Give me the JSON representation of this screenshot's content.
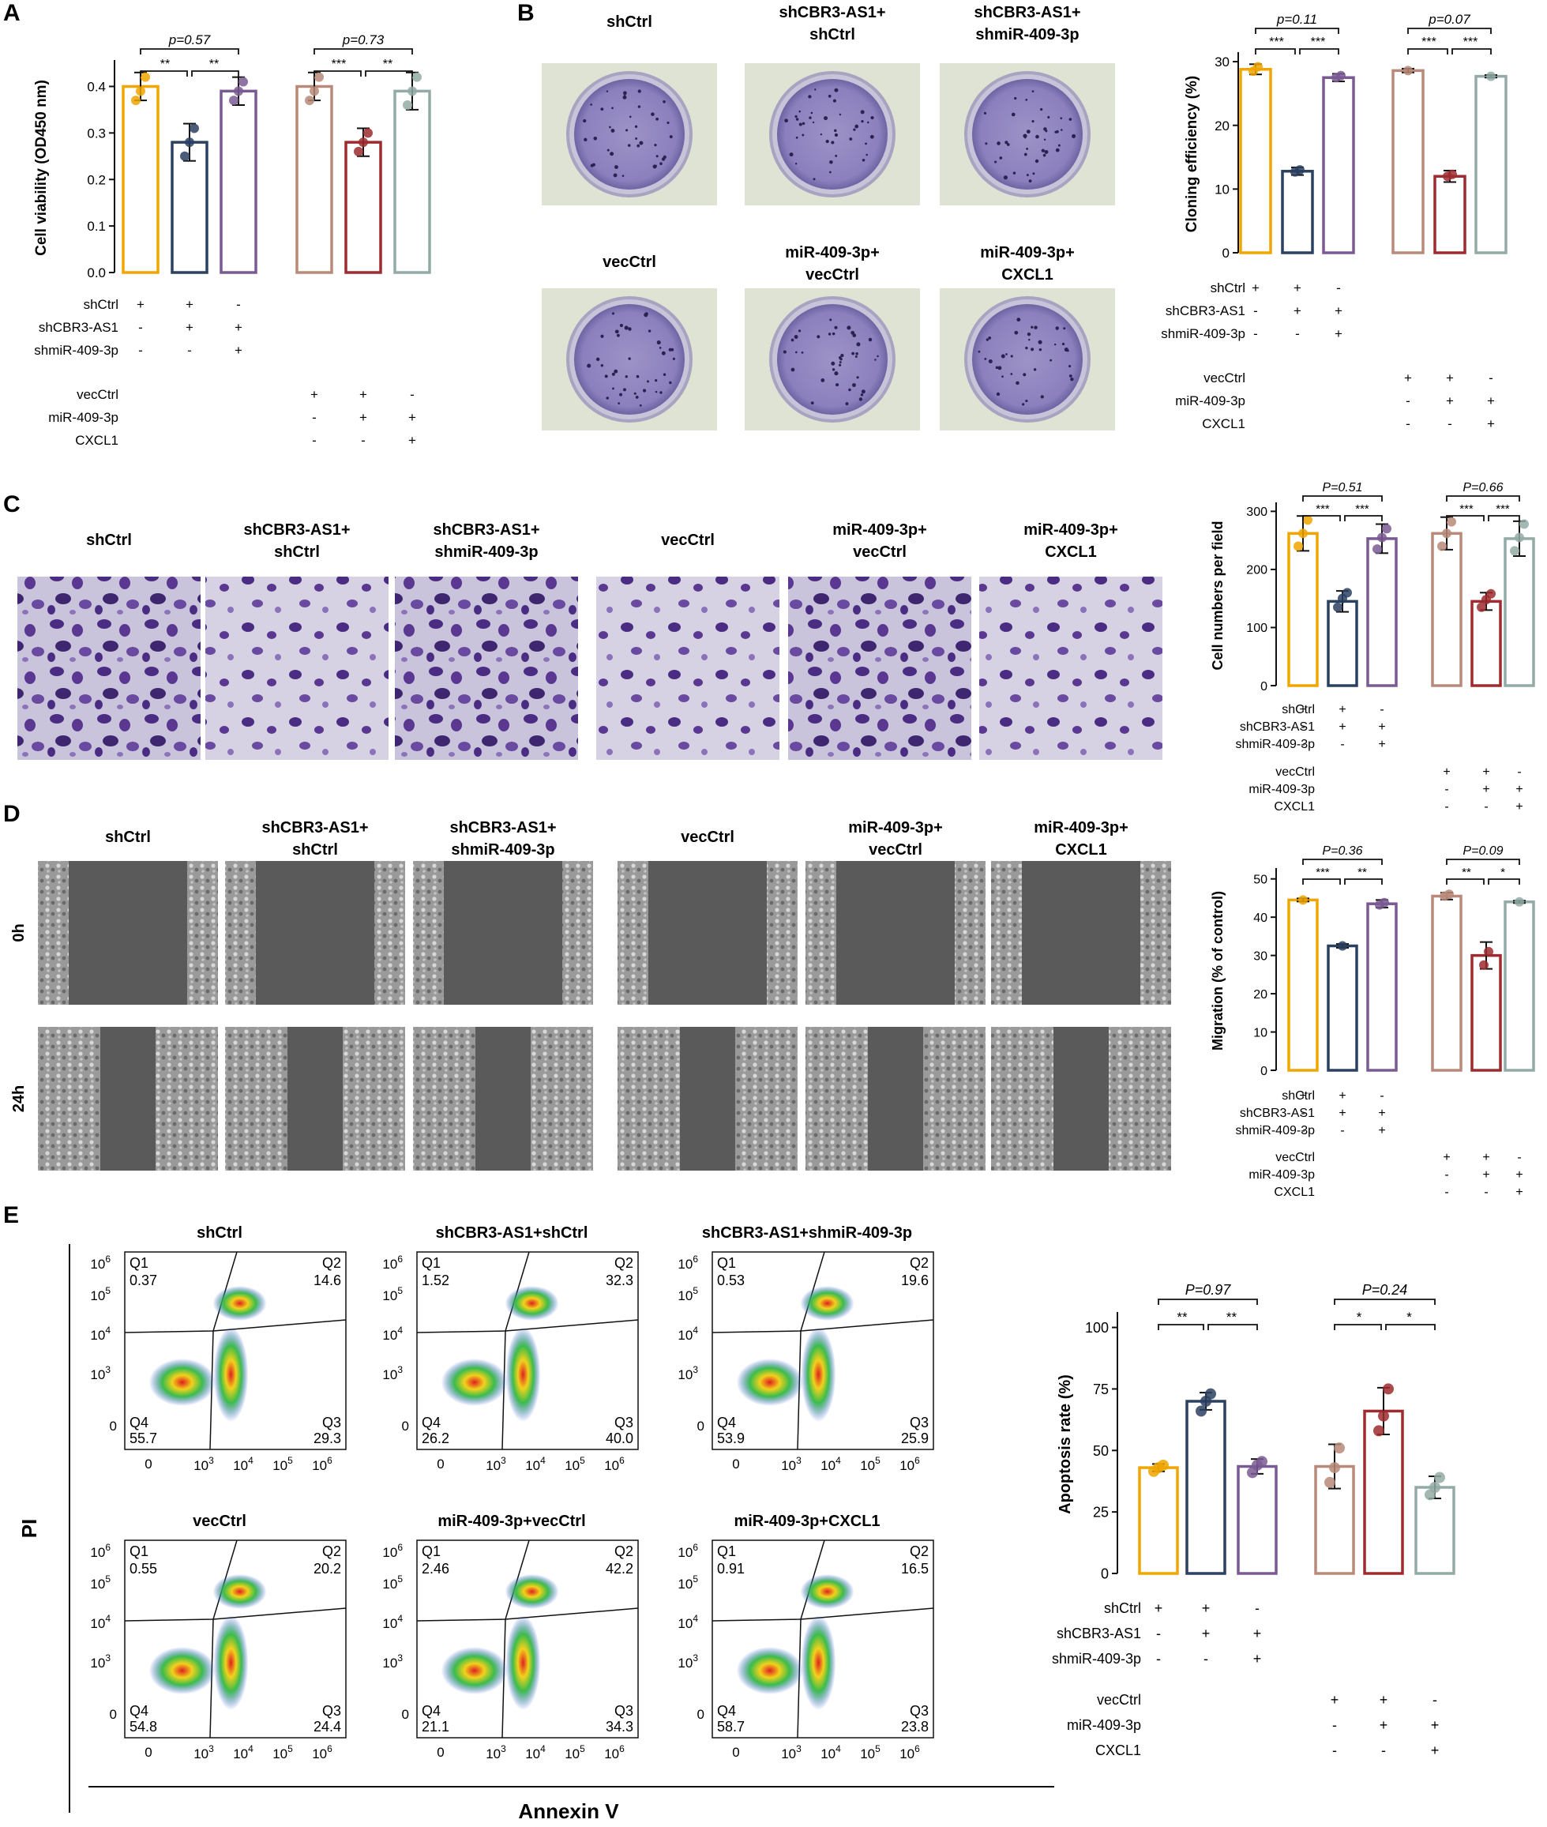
{
  "panels": {
    "A": {
      "letter": "A",
      "chart_data": {
        "type": "bar",
        "ylabel": "Cell viability (OD450 nm)",
        "ylim": [
          0,
          0.45
        ],
        "yticks": [
          "0.0",
          "0.1",
          "0.2",
          "0.3",
          "0.4"
        ],
        "ytick_values": [
          0,
          0.1,
          0.2,
          0.3,
          0.4
        ],
        "bars": [
          {
            "value": 0.4,
            "err": 0.03,
            "color": "#f0a500",
            "points": [
              0.37,
              0.39,
              0.42
            ]
          },
          {
            "value": 0.28,
            "err": 0.04,
            "color": "#2b4160",
            "points": [
              0.25,
              0.28,
              0.31
            ]
          },
          {
            "value": 0.39,
            "err": 0.03,
            "color": "#7a5a93",
            "points": [
              0.37,
              0.39,
              0.41
            ]
          },
          {
            "value": 0.4,
            "err": 0.03,
            "color": "#b98a79",
            "points": [
              0.37,
              0.39,
              0.42
            ]
          },
          {
            "value": 0.28,
            "err": 0.03,
            "color": "#9d2b2f",
            "points": [
              0.26,
              0.28,
              0.3
            ]
          },
          {
            "value": 0.39,
            "err": 0.04,
            "color": "#93aba6",
            "points": [
              0.36,
              0.39,
              0.42
            ]
          }
        ],
        "pvalues": [
          "p=0.57",
          "p=0.73"
        ],
        "sig": [
          "**",
          "**",
          "***",
          "**"
        ],
        "rows1": [
          {
            "label": "shCtrl",
            "signs": [
              "+",
              "+",
              "-"
            ]
          },
          {
            "label": "shCBR3-AS1",
            "signs": [
              "-",
              "+",
              "+"
            ]
          },
          {
            "label": "shmiR-409-3p",
            "signs": [
              "-",
              "-",
              "+"
            ]
          }
        ],
        "rows2": [
          {
            "label": "vecCtrl",
            "signs": [
              "+",
              "+",
              "-"
            ]
          },
          {
            "label": "miR-409-3p",
            "signs": [
              "-",
              "+",
              "+"
            ]
          },
          {
            "label": "CXCL1",
            "signs": [
              "-",
              "-",
              "+"
            ]
          }
        ]
      }
    },
    "B": {
      "letter": "B",
      "images": [
        {
          "title": [
            "shCtrl"
          ]
        },
        {
          "title": [
            "shCBR3-AS1+",
            "shCtrl"
          ]
        },
        {
          "title": [
            "shCBR3-AS1+",
            "shmiR-409-3p"
          ]
        },
        {
          "title": [
            "vecCtrl"
          ]
        },
        {
          "title": [
            "miR-409-3p+",
            "vecCtrl"
          ]
        },
        {
          "title": [
            "miR-409-3p+",
            "CXCL1"
          ]
        }
      ],
      "chart_data": {
        "type": "bar",
        "ylabel": "Cloning efficiency (%)",
        "ylim": [
          0,
          31
        ],
        "yticks": [
          "0",
          "10",
          "20",
          "30"
        ],
        "ytick_values": [
          0,
          10,
          20,
          30
        ],
        "bars": [
          {
            "value": 28.8,
            "err": 0.8,
            "color": "#f0a500",
            "points": [
              28.5,
              29.2
            ]
          },
          {
            "value": 12.8,
            "err": 0.6,
            "color": "#2b4160",
            "points": [
              12.7,
              13.0
            ]
          },
          {
            "value": 27.5,
            "err": 0.6,
            "color": "#7a5a93",
            "points": [
              27.5,
              27.8
            ]
          },
          {
            "value": 28.6,
            "err": 0.3,
            "color": "#b98a79",
            "points": [
              28.6
            ]
          },
          {
            "value": 12.0,
            "err": 0.9,
            "color": "#9d2b2f",
            "points": [
              12.0,
              12.3
            ]
          },
          {
            "value": 27.7,
            "err": 0.2,
            "color": "#93aba6",
            "points": [
              27.7
            ]
          }
        ],
        "pvalues": [
          "p=0.11",
          "p=0.07"
        ],
        "sig": [
          "***",
          "***",
          "***",
          "***"
        ],
        "rows1": [
          {
            "label": "shCtrl",
            "signs": [
              "+",
              "+",
              "-"
            ]
          },
          {
            "label": "shCBR3-AS1",
            "signs": [
              "-",
              "+",
              "+"
            ]
          },
          {
            "label": "shmiR-409-3p",
            "signs": [
              "-",
              "-",
              "+"
            ]
          }
        ],
        "rows2": [
          {
            "label": "vecCtrl",
            "signs": [
              "+",
              "+",
              "-"
            ]
          },
          {
            "label": "miR-409-3p",
            "signs": [
              "-",
              "+",
              "+"
            ]
          },
          {
            "label": "CXCL1",
            "signs": [
              "-",
              "-",
              "+"
            ]
          }
        ]
      }
    },
    "C": {
      "letter": "C",
      "images": [
        {
          "title": [
            "shCtrl"
          ]
        },
        {
          "title": [
            "shCBR3-AS1+",
            "shCtrl"
          ]
        },
        {
          "title": [
            "shCBR3-AS1+",
            "shmiR-409-3p"
          ]
        },
        {
          "title": [
            "vecCtrl"
          ]
        },
        {
          "title": [
            "miR-409-3p+",
            "vecCtrl"
          ]
        },
        {
          "title": [
            "miR-409-3p+",
            "CXCL1"
          ]
        }
      ],
      "chart_data": {
        "type": "bar",
        "ylabel": "Cell numbers per field",
        "ylim": [
          0,
          310
        ],
        "yticks": [
          "0",
          "100",
          "200",
          "300"
        ],
        "ytick_values": [
          0,
          100,
          200,
          300
        ],
        "bars": [
          {
            "value": 262,
            "err": 30,
            "color": "#f0a500",
            "points": [
              240,
              262,
              285
            ]
          },
          {
            "value": 145,
            "err": 18,
            "color": "#2b4160",
            "points": [
              135,
              150,
              160
            ]
          },
          {
            "value": 253,
            "err": 25,
            "color": "#7a5a93",
            "points": [
              235,
              255,
              270
            ]
          },
          {
            "value": 262,
            "err": 28,
            "color": "#b98a79",
            "points": [
              240,
              262,
              282
            ]
          },
          {
            "value": 145,
            "err": 15,
            "color": "#9d2b2f",
            "points": [
              135,
              148,
              158
            ]
          },
          {
            "value": 253,
            "err": 30,
            "color": "#93aba6",
            "points": [
              232,
              255,
              278
            ]
          }
        ],
        "pvalues": [
          "P=0.51",
          "P=0.66"
        ],
        "sig": [
          "***",
          "***",
          "***",
          "***"
        ],
        "rows1": [
          {
            "label": "shCtrl",
            "signs": [
              "+",
              "+",
              "-"
            ]
          },
          {
            "label": "shCBR3-AS1",
            "signs": [
              "-",
              "+",
              "+"
            ]
          },
          {
            "label": "shmiR-409-3p",
            "signs": [
              "-",
              "-",
              "+"
            ]
          }
        ],
        "rows2": [
          {
            "label": "vecCtrl",
            "signs": [
              "+",
              "+",
              "-"
            ]
          },
          {
            "label": "miR-409-3p",
            "signs": [
              "-",
              "+",
              "+"
            ]
          },
          {
            "label": "CXCL1",
            "signs": [
              "-",
              "-",
              "+"
            ]
          }
        ]
      }
    },
    "D": {
      "letter": "D",
      "images": [
        {
          "title": [
            "shCtrl"
          ]
        },
        {
          "title": [
            "shCBR3-AS1+",
            "shCtrl"
          ]
        },
        {
          "title": [
            "shCBR3-AS1+",
            "shmiR-409-3p"
          ]
        },
        {
          "title": [
            "vecCtrl"
          ]
        },
        {
          "title": [
            "miR-409-3p+",
            "vecCtrl"
          ]
        },
        {
          "title": [
            "miR-409-3p+",
            "CXCL1"
          ]
        }
      ],
      "rows": [
        "0h",
        "24h"
      ],
      "chart_data": {
        "type": "bar",
        "ylabel": "Migration (% of control)",
        "ylim": [
          0,
          52
        ],
        "yticks": [
          "0",
          "10",
          "20",
          "30",
          "40",
          "50"
        ],
        "ytick_values": [
          0,
          10,
          20,
          30,
          40,
          50
        ],
        "bars": [
          {
            "value": 44.5,
            "err": 0.4,
            "color": "#f0a500",
            "points": [
              44.5
            ]
          },
          {
            "value": 32.5,
            "err": 0.5,
            "color": "#2b4160",
            "points": [
              32.5
            ]
          },
          {
            "value": 43.5,
            "err": 1.0,
            "color": "#7a5a93",
            "points": [
              43.2,
              43.8
            ]
          },
          {
            "value": 45.5,
            "err": 0.9,
            "color": "#b98a79",
            "points": [
              45.5,
              46.0
            ]
          },
          {
            "value": 30.0,
            "err": 3.5,
            "color": "#9d2b2f",
            "points": [
              27.5,
              31.0
            ]
          },
          {
            "value": 44.0,
            "err": 0.3,
            "color": "#93aba6",
            "points": [
              44.0
            ]
          }
        ],
        "pvalues": [
          "P=0.36",
          "P=0.09"
        ],
        "sig": [
          "***",
          "**",
          "**",
          "*"
        ],
        "rows1": [
          {
            "label": "shCtrl",
            "signs": [
              "+",
              "+",
              "-"
            ]
          },
          {
            "label": "shCBR3-AS1",
            "signs": [
              "-",
              "+",
              "+"
            ]
          },
          {
            "label": "shmiR-409-3p",
            "signs": [
              "-",
              "-",
              "+"
            ]
          }
        ],
        "rows2": [
          {
            "label": "vecCtrl",
            "signs": [
              "+",
              "+",
              "-"
            ]
          },
          {
            "label": "miR-409-3p",
            "signs": [
              "-",
              "+",
              "+"
            ]
          },
          {
            "label": "CXCL1",
            "signs": [
              "-",
              "-",
              "+"
            ]
          }
        ]
      }
    },
    "E": {
      "letter": "E",
      "ylabel": "PI",
      "xlabel": "Annexin V",
      "flow": [
        {
          "title": "shCtrl",
          "q1": "0.37",
          "q2": "14.6",
          "q3": "29.3",
          "q4": "55.7"
        },
        {
          "title": "shCBR3-AS1+shCtrl",
          "q1": "1.52",
          "q2": "32.3",
          "q3": "40.0",
          "q4": "26.2"
        },
        {
          "title": "shCBR3-AS1+shmiR-409-3p",
          "q1": "0.53",
          "q2": "19.6",
          "q3": "25.9",
          "q4": "53.9"
        },
        {
          "title": "vecCtrl",
          "q1": "0.55",
          "q2": "20.2",
          "q3": "24.4",
          "q4": "54.8"
        },
        {
          "title": "miR-409-3p+vecCtrl",
          "q1": "2.46",
          "q2": "42.2",
          "q3": "34.3",
          "q4": "21.1"
        },
        {
          "title": "miR-409-3p+CXCL1",
          "q1": "0.91",
          "q2": "16.5",
          "q3": "23.8",
          "q4": "58.7"
        }
      ],
      "quad_labels": [
        "Q1",
        "Q2",
        "Q3",
        "Q4"
      ],
      "axis_ticks": {
        "zero": "0",
        "base": "10",
        "exps": [
          "3",
          "4",
          "5",
          "6"
        ]
      },
      "chart_data": {
        "type": "bar",
        "ylabel": "Apoptosis rate (%)",
        "ylim": [
          0,
          105
        ],
        "yticks": [
          "0",
          "25",
          "50",
          "75",
          "100"
        ],
        "ytick_values": [
          0,
          25,
          50,
          75,
          100
        ],
        "bars": [
          {
            "value": 43,
            "err": 1.5,
            "color": "#f0a500",
            "points": [
              41.5,
              43,
              44
            ]
          },
          {
            "value": 70,
            "err": 3.5,
            "color": "#2b4160",
            "points": [
              66,
              70,
              73
            ]
          },
          {
            "value": 43.5,
            "err": 3,
            "color": "#7a5a93",
            "points": [
              41,
              44,
              45.5
            ]
          },
          {
            "value": 43.5,
            "err": 9,
            "color": "#b98a79",
            "points": [
              37,
              43,
              51
            ]
          },
          {
            "value": 66,
            "err": 9.5,
            "color": "#9d2b2f",
            "points": [
              58,
              64,
              75
            ]
          },
          {
            "value": 35,
            "err": 4.5,
            "color": "#93aba6",
            "points": [
              32,
              35,
              39
            ]
          }
        ],
        "pvalues": [
          "P=0.97",
          "P=0.24"
        ],
        "sig": [
          "**",
          "**",
          "*",
          "*"
        ],
        "rows1": [
          {
            "label": "shCtrl",
            "signs": [
              "+",
              "+",
              "-"
            ]
          },
          {
            "label": "shCBR3-AS1",
            "signs": [
              "-",
              "+",
              "+"
            ]
          },
          {
            "label": "shmiR-409-3p",
            "signs": [
              "-",
              "-",
              "+"
            ]
          }
        ],
        "rows2": [
          {
            "label": "vecCtrl",
            "signs": [
              "+",
              "+",
              "-"
            ]
          },
          {
            "label": "miR-409-3p",
            "signs": [
              "-",
              "+",
              "+"
            ]
          },
          {
            "label": "CXCL1",
            "signs": [
              "-",
              "-",
              "+"
            ]
          }
        ]
      }
    }
  }
}
